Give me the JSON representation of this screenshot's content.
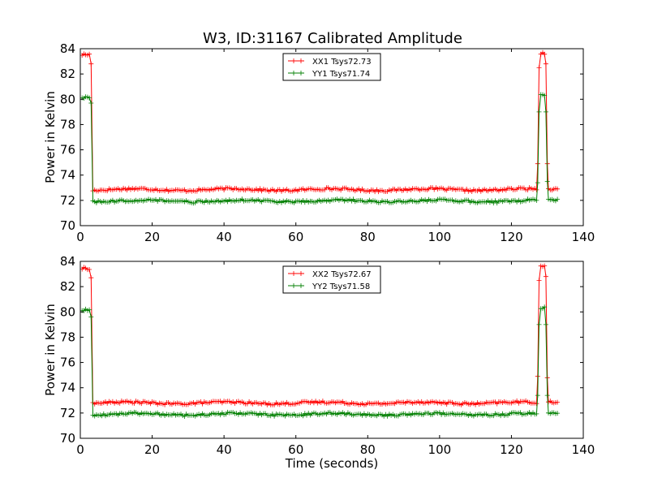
{
  "figure": {
    "title": "W3, ID:31167 Calibrated Amplitude"
  },
  "chart_data": [
    {
      "type": "line",
      "title": "W3, ID:31167 Calibrated Amplitude",
      "xlabel": "",
      "ylabel": "Power in Kelvin",
      "xlim": [
        0,
        140
      ],
      "ylim": [
        70,
        84
      ],
      "xticks": [
        "0",
        "20",
        "40",
        "60",
        "80",
        "100",
        "120",
        "140"
      ],
      "yticks": [
        "70",
        "72",
        "74",
        "76",
        "78",
        "80",
        "82",
        "84"
      ],
      "grid": false,
      "legend_position": "top-center",
      "series": [
        {
          "name": "XX1 Tsys72.73",
          "color": "#ff0000",
          "marker": "plus",
          "segments": [
            {
              "x0": 0.5,
              "x1": 2.5,
              "level": 83.6,
              "noise": 0.12
            },
            {
              "x0": 3.5,
              "x1": 127,
              "level": 72.85,
              "noise": 0.12
            },
            {
              "x0": 128.2,
              "x1": 129.2,
              "level": 83.6,
              "noise": 0.12
            },
            {
              "x0": 130.3,
              "x1": 133,
              "level": 72.9,
              "noise": 0.1
            }
          ],
          "transitions": [
            {
              "x": 3.0,
              "y": 82.8
            },
            {
              "x": 127.3,
              "y": 74.9
            },
            {
              "x": 127.7,
              "y": 82.5
            },
            {
              "x": 129.6,
              "y": 82.8
            },
            {
              "x": 130.0,
              "y": 74.9
            }
          ]
        },
        {
          "name": "YY1 Tsys71.74",
          "color": "#007f00",
          "marker": "plus",
          "segments": [
            {
              "x0": 0.5,
              "x1": 2.5,
              "level": 80.2,
              "noise": 0.12
            },
            {
              "x0": 3.5,
              "x1": 127,
              "level": 71.95,
              "noise": 0.12
            },
            {
              "x0": 128.2,
              "x1": 129.2,
              "level": 80.3,
              "noise": 0.12
            },
            {
              "x0": 130.3,
              "x1": 133,
              "level": 72.0,
              "noise": 0.1
            }
          ],
          "transitions": [
            {
              "x": 3.0,
              "y": 79.7
            },
            {
              "x": 127.3,
              "y": 73.4
            },
            {
              "x": 127.7,
              "y": 79.0
            },
            {
              "x": 129.6,
              "y": 79.0
            },
            {
              "x": 130.0,
              "y": 73.5
            }
          ]
        }
      ]
    },
    {
      "type": "line",
      "title": "",
      "xlabel": "Time (seconds)",
      "ylabel": "Power in Kelvin",
      "xlim": [
        0,
        140
      ],
      "ylim": [
        70,
        84
      ],
      "xticks": [
        "0",
        "20",
        "40",
        "60",
        "80",
        "100",
        "120",
        "140"
      ],
      "yticks": [
        "70",
        "72",
        "74",
        "76",
        "78",
        "80",
        "82",
        "84"
      ],
      "grid": false,
      "legend_position": "top-center",
      "series": [
        {
          "name": "XX2 Tsys72.67",
          "color": "#ff0000",
          "marker": "plus",
          "segments": [
            {
              "x0": 0.5,
              "x1": 2.5,
              "level": 83.5,
              "noise": 0.12
            },
            {
              "x0": 3.5,
              "x1": 127,
              "level": 72.8,
              "noise": 0.12
            },
            {
              "x0": 128.2,
              "x1": 129.2,
              "level": 83.6,
              "noise": 0.12
            },
            {
              "x0": 130.3,
              "x1": 133,
              "level": 72.9,
              "noise": 0.1
            }
          ],
          "transitions": [
            {
              "x": 3.0,
              "y": 82.7
            },
            {
              "x": 127.3,
              "y": 74.9
            },
            {
              "x": 127.7,
              "y": 82.5
            },
            {
              "x": 129.6,
              "y": 82.8
            },
            {
              "x": 130.0,
              "y": 74.8
            }
          ]
        },
        {
          "name": "YY2 Tsys71.58",
          "color": "#007f00",
          "marker": "plus",
          "segments": [
            {
              "x0": 0.5,
              "x1": 2.5,
              "level": 80.2,
              "noise": 0.12
            },
            {
              "x0": 3.5,
              "x1": 127,
              "level": 71.9,
              "noise": 0.12
            },
            {
              "x0": 128.2,
              "x1": 129.2,
              "level": 80.3,
              "noise": 0.12
            },
            {
              "x0": 130.3,
              "x1": 133,
              "level": 71.95,
              "noise": 0.1
            }
          ],
          "transitions": [
            {
              "x": 3.0,
              "y": 79.6
            },
            {
              "x": 127.3,
              "y": 73.4
            },
            {
              "x": 127.7,
              "y": 79.0
            },
            {
              "x": 129.6,
              "y": 79.0
            },
            {
              "x": 130.0,
              "y": 73.4
            }
          ]
        }
      ]
    }
  ]
}
